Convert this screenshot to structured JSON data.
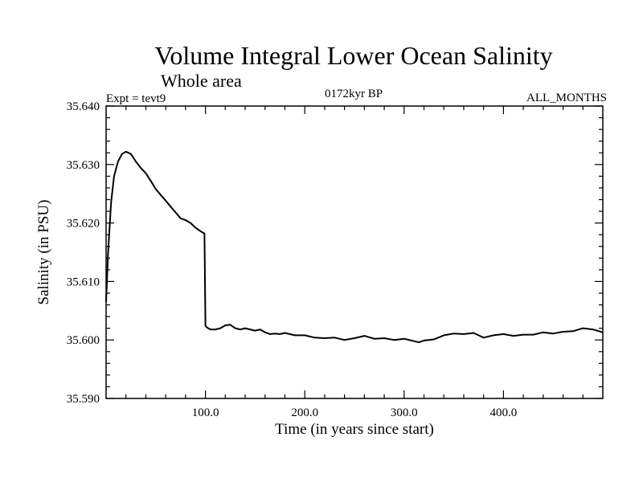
{
  "chart_data": {
    "type": "line",
    "title": "Volume Integral Lower Ocean Salinity",
    "subtitle": "Whole area",
    "experiment_label": "Expt = tevt9",
    "period_label": "0172kyr BP",
    "months_label": "ALL_MONTHS",
    "xlabel": "Time (in years since start)",
    "ylabel": "Salinity (in PSU)",
    "xlim": [
      0,
      500
    ],
    "ylim": [
      35.59,
      35.64
    ],
    "x_ticks": [
      {
        "value": 100,
        "label": "100.0"
      },
      {
        "value": 200,
        "label": "200.0"
      },
      {
        "value": 300,
        "label": "300.0"
      },
      {
        "value": 400,
        "label": "400.0"
      }
    ],
    "y_ticks": [
      {
        "value": 35.59,
        "label": "35.590"
      },
      {
        "value": 35.6,
        "label": "35.600"
      },
      {
        "value": 35.61,
        "label": "35.610"
      },
      {
        "value": 35.62,
        "label": "35.620"
      },
      {
        "value": 35.63,
        "label": "35.630"
      },
      {
        "value": 35.64,
        "label": "35.640"
      }
    ],
    "grid": false,
    "series": [
      {
        "color": "#000000",
        "x": [
          0,
          2,
          5,
          8,
          12,
          16,
          20,
          25,
          30,
          35,
          40,
          45,
          50,
          55,
          60,
          65,
          70,
          75,
          80,
          85,
          90,
          95,
          99,
          99.5,
          100,
          101,
          105,
          110,
          115,
          120,
          125,
          130,
          135,
          140,
          145,
          150,
          155,
          160,
          165,
          170,
          175,
          180,
          190,
          200,
          210,
          220,
          230,
          240,
          250,
          260,
          270,
          280,
          290,
          300,
          310,
          315,
          320,
          330,
          340,
          350,
          360,
          370,
          380,
          390,
          400,
          410,
          420,
          430,
          440,
          450,
          460,
          470,
          480,
          490,
          500
        ],
        "y": [
          35.6065,
          35.615,
          35.6235,
          35.628,
          35.6305,
          35.6318,
          35.6322,
          35.6318,
          35.6305,
          35.6294,
          35.6285,
          35.6272,
          35.6258,
          35.6248,
          35.6238,
          35.6228,
          35.6218,
          35.6208,
          35.6205,
          35.62,
          35.6192,
          35.6186,
          35.6182,
          35.6105,
          35.6025,
          35.6022,
          35.6018,
          35.6018,
          35.602,
          35.6025,
          35.6026,
          35.602,
          35.6018,
          35.602,
          35.6018,
          35.6016,
          35.6018,
          35.6013,
          35.601,
          35.6011,
          35.601,
          35.6012,
          35.6008,
          35.6008,
          35.6004,
          35.6003,
          35.6004,
          35.6,
          35.6003,
          35.6007,
          35.6002,
          35.6003,
          35.6,
          35.6002,
          35.5998,
          35.5996,
          35.5999,
          35.6001,
          35.6008,
          35.6011,
          35.601,
          35.6012,
          35.6004,
          35.6008,
          35.601,
          35.6007,
          35.6009,
          35.6009,
          35.6013,
          35.6011,
          35.6014,
          35.6015,
          35.602,
          35.6018,
          35.6013
        ]
      }
    ]
  }
}
